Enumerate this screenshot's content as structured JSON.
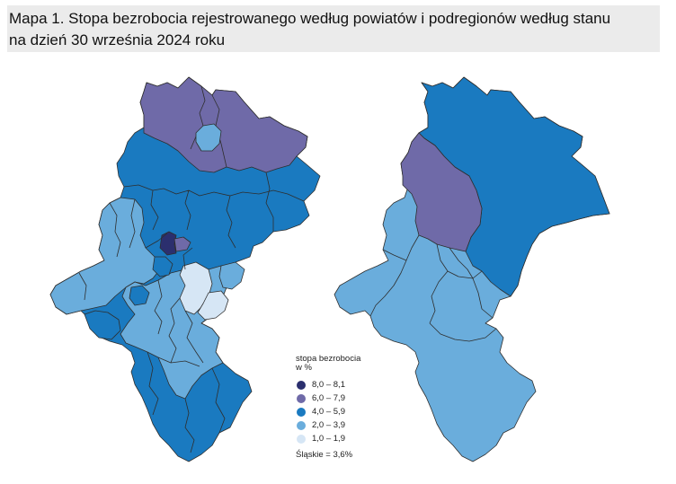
{
  "title": {
    "line1": "Mapa 1. Stopa bezrobocia rejestrowanego według powiatów i podregionów według stanu",
    "line2": "na dzień 30 września 2024 roku"
  },
  "legend": {
    "title_line1": "stopa bezrobocia",
    "title_line2": "w %",
    "items": [
      {
        "label": "8,0 – 8,1",
        "color": "#2b2f6e"
      },
      {
        "label": "6,0 – 7,9",
        "color": "#6f6aa8"
      },
      {
        "label": "4,0 – 5,9",
        "color": "#1a7ac0"
      },
      {
        "label": "2,0 – 3,9",
        "color": "#6aaddc"
      },
      {
        "label": "1,0 – 1,9",
        "color": "#d6e6f5"
      }
    ],
    "note": "Śląskie = 3,6%"
  },
  "maps": {
    "left": {
      "division": "powiaty"
    },
    "right": {
      "division": "podregiony"
    }
  },
  "colors": {
    "class_8": "#2b2f6e",
    "class_6": "#6f6aa8",
    "class_4": "#1a7ac0",
    "class_2": "#6aaddc",
    "class_1": "#d6e6f5",
    "border": "#2e2e2e"
  }
}
